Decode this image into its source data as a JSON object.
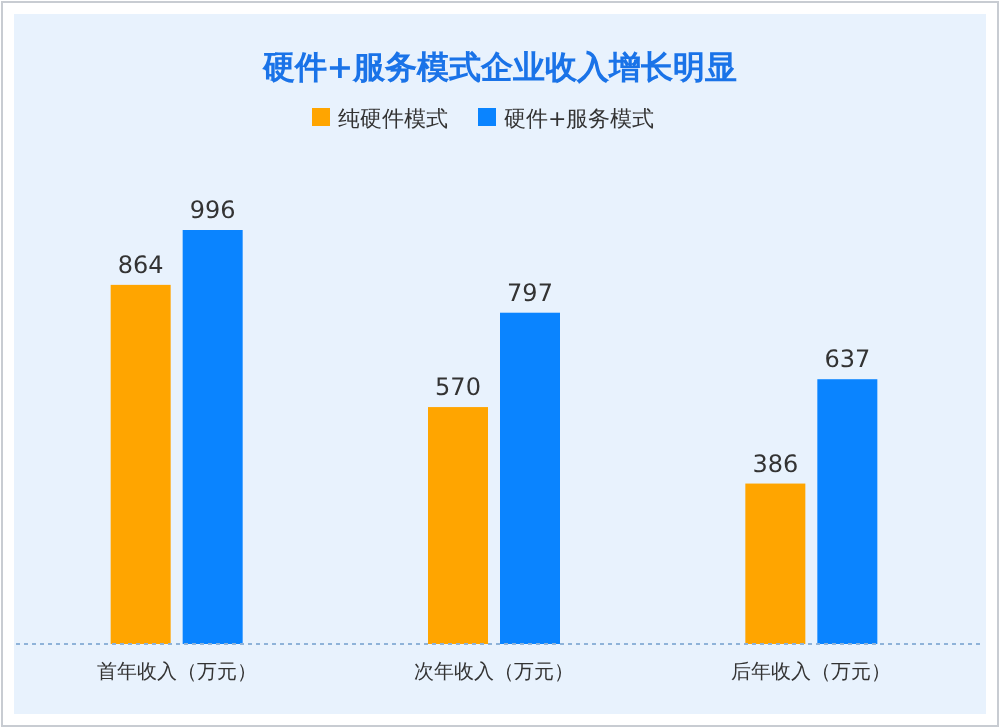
{
  "chart_data": {
    "type": "bar",
    "title": "硬件+服务模式企业收入增长明显",
    "categories": [
      "首年收入（万元）",
      "次年收入（万元）",
      "后年收入（万元）"
    ],
    "series": [
      {
        "name": "纯硬件模式",
        "color": "#ffa500",
        "values": [
          864,
          570,
          386
        ]
      },
      {
        "name": "硬件+服务模式",
        "color": "#0a84ff",
        "values": [
          996,
          797,
          637
        ]
      }
    ],
    "legend": "top",
    "data_labels": true
  }
}
